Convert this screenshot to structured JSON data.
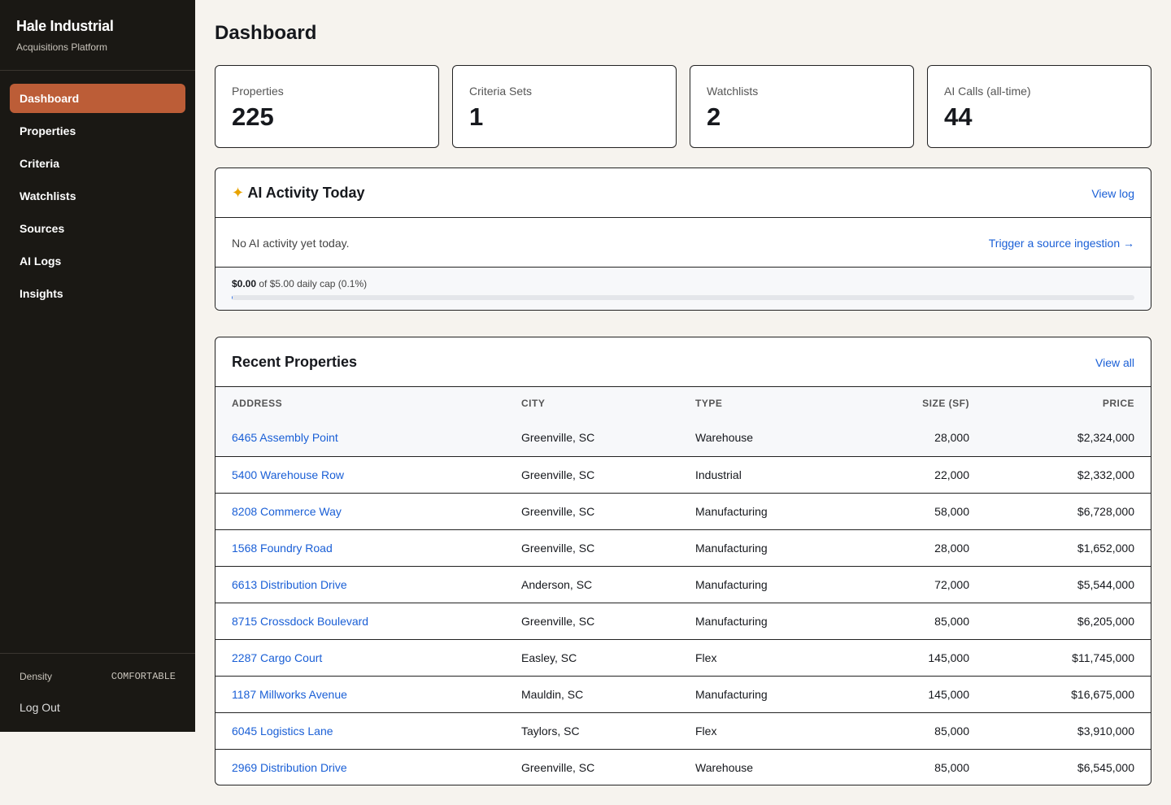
{
  "sidebar": {
    "brand": "Hale Industrial",
    "tagline": "Acquisitions Platform",
    "nav": [
      "Dashboard",
      "Properties",
      "Criteria",
      "Watchlists",
      "Sources",
      "AI Logs",
      "Insights"
    ],
    "density_label": "Density",
    "density_value": "COMFORTABLE",
    "logout": "Log Out"
  },
  "header": {
    "title": "Dashboard"
  },
  "stats": [
    {
      "label": "Properties",
      "value": "225"
    },
    {
      "label": "Criteria Sets",
      "value": "1"
    },
    {
      "label": "Watchlists",
      "value": "2"
    },
    {
      "label": "AI Calls (all-time)",
      "value": "44"
    }
  ],
  "ai_activity": {
    "icon": "✦",
    "title": "AI Activity Today",
    "link": "View log",
    "message": "No AI activity yet today.",
    "action": "Trigger a source ingestion →",
    "spend": "$0.00",
    "cap_text": "of $5.00 daily cap (0.1%)",
    "usage_percent": 0.1
  },
  "recent": {
    "title": "Recent Properties",
    "link": "View all",
    "columns": [
      "ADDRESS",
      "CITY",
      "TYPE",
      "SIZE (SF)",
      "PRICE"
    ],
    "rows": [
      [
        "6465 Assembly Point",
        "Greenville, SC",
        "Warehouse",
        "28,000",
        "$2,324,000"
      ],
      [
        "5400 Warehouse Row",
        "Greenville, SC",
        "Industrial",
        "22,000",
        "$2,332,000"
      ],
      [
        "8208 Commerce Way",
        "Greenville, SC",
        "Manufacturing",
        "58,000",
        "$6,728,000"
      ],
      [
        "1568 Foundry Road",
        "Greenville, SC",
        "Manufacturing",
        "28,000",
        "$1,652,000"
      ],
      [
        "6613 Distribution Drive",
        "Anderson, SC",
        "Manufacturing",
        "72,000",
        "$5,544,000"
      ],
      [
        "8715 Crossdock Boulevard",
        "Greenville, SC",
        "Manufacturing",
        "85,000",
        "$6,205,000"
      ],
      [
        "2287 Cargo Court",
        "Easley, SC",
        "Flex",
        "145,000",
        "$11,745,000"
      ],
      [
        "1187 Millworks Avenue",
        "Mauldin, SC",
        "Manufacturing",
        "145,000",
        "$16,675,000"
      ],
      [
        "6045 Logistics Lane",
        "Taylors, SC",
        "Flex",
        "85,000",
        "$3,910,000"
      ],
      [
        "2969 Distribution Drive",
        "Greenville, SC",
        "Warehouse",
        "85,000",
        "$6,545,000"
      ]
    ]
  }
}
